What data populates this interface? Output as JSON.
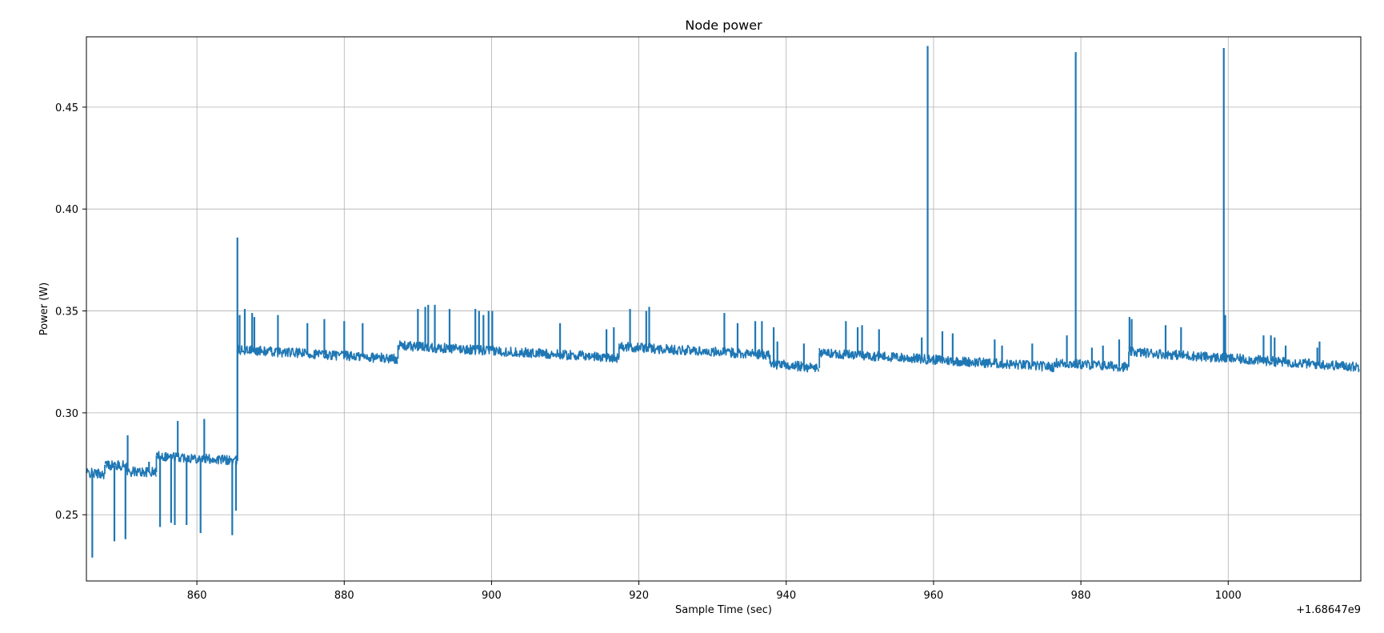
{
  "chart_data": {
    "type": "line",
    "title": "Node power",
    "xlabel": "Sample Time (sec)",
    "ylabel": "Power (W)",
    "x_offset_label": "+1.68647e9",
    "xlim": [
      845,
      1018
    ],
    "ylim": [
      0.2175,
      0.4845
    ],
    "xticks": [
      860,
      880,
      900,
      920,
      940,
      960,
      980,
      1000
    ],
    "xtick_labels": [
      "860",
      "880",
      "900",
      "920",
      "940",
      "960",
      "980",
      "1000"
    ],
    "yticks": [
      0.25,
      0.3,
      0.35,
      0.4,
      0.45
    ],
    "ytick_labels": [
      "0.25",
      "0.30",
      "0.35",
      "0.40",
      "0.45"
    ],
    "grid": true,
    "line_color": "#1f77b4",
    "series": [
      {
        "segments": [
          {
            "x0": 845.0,
            "x1": 847.5,
            "y0": 0.2705,
            "y1": 0.27
          },
          {
            "x0": 847.5,
            "x1": 850.5,
            "y0": 0.2745,
            "y1": 0.274
          },
          {
            "x0": 850.5,
            "x1": 854.5,
            "y0": 0.2712,
            "y1": 0.2708
          },
          {
            "x0": 854.5,
            "x1": 865.5,
            "y0": 0.279,
            "y1": 0.2765
          },
          {
            "x0": 865.5,
            "x1": 887.3,
            "y0": 0.331,
            "y1": 0.3265
          },
          {
            "x0": 887.3,
            "x1": 917.3,
            "y0": 0.333,
            "y1": 0.327
          },
          {
            "x0": 917.3,
            "x1": 937.8,
            "y0": 0.3325,
            "y1": 0.3285
          },
          {
            "x0": 937.8,
            "x1": 944.5,
            "y0": 0.324,
            "y1": 0.322
          },
          {
            "x0": 944.5,
            "x1": 976.5,
            "y0": 0.3295,
            "y1": 0.3225
          },
          {
            "x0": 976.5,
            "x1": 986.5,
            "y0": 0.3245,
            "y1": 0.3225
          },
          {
            "x0": 986.5,
            "x1": 1017.8,
            "y0": 0.33,
            "y1": 0.3225
          }
        ],
        "spikes": [
          [
            845.8,
            0.229
          ],
          [
            848.8,
            0.237
          ],
          [
            850.3,
            0.238
          ],
          [
            850.6,
            0.289
          ],
          [
            853.5,
            0.276
          ],
          [
            855.0,
            0.244
          ],
          [
            856.5,
            0.246
          ],
          [
            857.0,
            0.245
          ],
          [
            857.4,
            0.296
          ],
          [
            858.6,
            0.245
          ],
          [
            860.5,
            0.241
          ],
          [
            861.0,
            0.297
          ],
          [
            864.8,
            0.24
          ],
          [
            865.3,
            0.252
          ],
          [
            865.5,
            0.386
          ],
          [
            865.8,
            0.348
          ],
          [
            866.5,
            0.351
          ],
          [
            867.5,
            0.349
          ],
          [
            867.8,
            0.347
          ],
          [
            871.0,
            0.348
          ],
          [
            875.0,
            0.344
          ],
          [
            877.3,
            0.346
          ],
          [
            880.0,
            0.345
          ],
          [
            882.5,
            0.344
          ],
          [
            890.0,
            0.351
          ],
          [
            891.0,
            0.352
          ],
          [
            891.4,
            0.353
          ],
          [
            892.3,
            0.353
          ],
          [
            894.3,
            0.351
          ],
          [
            897.8,
            0.351
          ],
          [
            898.3,
            0.35
          ],
          [
            898.9,
            0.348
          ],
          [
            899.6,
            0.35
          ],
          [
            900.1,
            0.35
          ],
          [
            909.3,
            0.344
          ],
          [
            915.6,
            0.341
          ],
          [
            916.6,
            0.342
          ],
          [
            918.8,
            0.351
          ],
          [
            921.0,
            0.35
          ],
          [
            921.4,
            0.352
          ],
          [
            931.6,
            0.349
          ],
          [
            933.4,
            0.344
          ],
          [
            935.8,
            0.345
          ],
          [
            936.7,
            0.345
          ],
          [
            938.3,
            0.342
          ],
          [
            938.8,
            0.335
          ],
          [
            942.4,
            0.334
          ],
          [
            948.1,
            0.345
          ],
          [
            949.7,
            0.342
          ],
          [
            950.3,
            0.343
          ],
          [
            952.6,
            0.341
          ],
          [
            958.4,
            0.337
          ],
          [
            959.2,
            0.48
          ],
          [
            961.2,
            0.34
          ],
          [
            962.6,
            0.339
          ],
          [
            968.3,
            0.336
          ],
          [
            969.3,
            0.333
          ],
          [
            973.4,
            0.334
          ],
          [
            978.1,
            0.338
          ],
          [
            979.3,
            0.477
          ],
          [
            981.5,
            0.332
          ],
          [
            983.0,
            0.333
          ],
          [
            985.2,
            0.336
          ],
          [
            986.6,
            0.347
          ],
          [
            986.9,
            0.346
          ],
          [
            991.5,
            0.343
          ],
          [
            993.6,
            0.342
          ],
          [
            999.4,
            0.479
          ],
          [
            999.6,
            0.348
          ],
          [
            1004.8,
            0.338
          ],
          [
            1005.8,
            0.338
          ],
          [
            1006.3,
            0.337
          ],
          [
            1007.8,
            0.333
          ],
          [
            1012.1,
            0.332
          ],
          [
            1012.4,
            0.335
          ]
        ]
      }
    ]
  }
}
